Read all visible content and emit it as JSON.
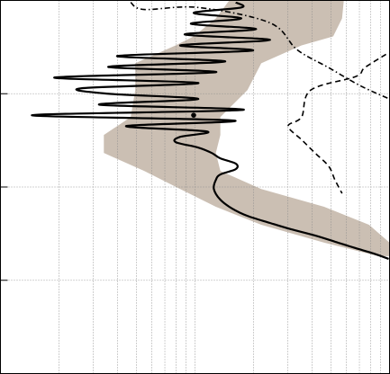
{
  "chart_data": {
    "type": "line",
    "xscale": "log",
    "yscale": "log",
    "y_inverted": true,
    "grid": true,
    "xlim": [
      1,
      100
    ],
    "ylim": [
      1,
      10000
    ],
    "xticks": [
      1,
      2,
      3,
      4,
      5,
      6,
      7,
      8,
      9,
      10,
      20,
      30,
      40,
      50,
      60,
      70,
      80,
      90,
      100
    ],
    "yticks": [
      1,
      10,
      100,
      1000,
      10000
    ],
    "band": {
      "color": "#cbbfb3",
      "y": [
        1,
        1.56,
        2.43,
        3.03,
        4.71,
        9.16,
        17.8,
        27.7,
        43.2,
        67.3,
        105,
        163,
        254,
        395,
        550
      ],
      "low": [
        15.0,
        12.8,
        9.84,
        7.95,
        4.93,
        4.93,
        4.67,
        3.4,
        3.4,
        5.48,
        8.39,
        12.8,
        21.9,
        46.1,
        87.3
      ],
      "high": [
        58.2,
        57.0,
        51.3,
        35.3,
        21.9,
        18.6,
        13.5,
        13.5,
        12.8,
        13.5,
        21.9,
        46.1,
        78.4,
        100,
        100
      ]
    },
    "series": [
      {
        "style": "solid",
        "color": "#000000",
        "x": [
          16.2,
          17.3,
          9.84,
          17.3,
          9.53,
          20.6,
          8.85,
          24.3,
          8.39,
          19.7,
          3.98,
          14.3,
          3.58,
          12.8,
          1.89,
          10.4,
          2.6,
          3.58,
          10.4,
          3.22,
          17.7,
          1.45,
          15.9,
          4.43,
          11.5,
          8.39,
          7.95,
          10.4,
          12.2,
          13.5,
          16.2,
          16.2,
          13.5,
          12.8,
          12.5,
          13.5,
          15.5,
          18.6,
          24.3,
          30.1,
          41.4,
          54.3,
          66.8,
          82.7,
          99
        ],
        "values": [
          1.05,
          1.19,
          1.36,
          1.56,
          1.78,
          2.03,
          2.32,
          2.65,
          3.03,
          3.45,
          3.94,
          4.51,
          5.15,
          5.88,
          6.71,
          7.66,
          8.75,
          10,
          11.4,
          13.1,
          14.9,
          17.0,
          19.4,
          22.2,
          25.4,
          29.0,
          33.0,
          37.8,
          43.2,
          49.3,
          56.2,
          64.3,
          73.4,
          84,
          105,
          137,
          170,
          204,
          243,
          278,
          331,
          395,
          452,
          516,
          590
        ]
      },
      {
        "style": "dashed",
        "color": "#000000",
        "x": [
          95.9,
          74.5,
          66.8,
          39.3,
          35.3,
          30.1,
          35.3,
          41.4,
          48.7,
          52.4,
          57.0
        ],
        "values": [
          3.78,
          5.26,
          6.56,
          9.16,
          17.8,
          22.2,
          31.1,
          43.2,
          60,
          84,
          117
        ]
      },
      {
        "style": "dashdot",
        "color": "#000000",
        "x": [
          4.67,
          5.48,
          10.4,
          24.3,
          33.5,
          48.7,
          70.5,
          100
        ],
        "values": [
          1.05,
          1.25,
          1.19,
          1.74,
          3.38,
          5.26,
          8.18,
          11.4
        ]
      }
    ],
    "points": [
      {
        "x": 9.84,
        "y": 17.0,
        "color": "#000000"
      }
    ]
  }
}
